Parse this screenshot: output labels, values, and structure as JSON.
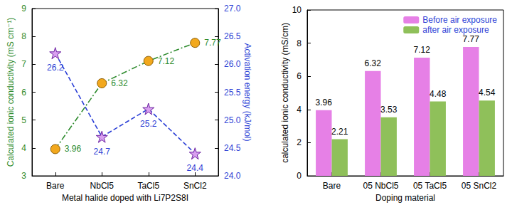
{
  "chart_data": [
    {
      "type": "line",
      "x_label": "Metal halide doped with Li7P2S8I",
      "y_label": "Calculated ionic conductivity (mS cm⁻¹)",
      "y2_label": "Activation energy (kJ/mol)",
      "categories": [
        "Bare",
        "NbCl5",
        "TaCl5",
        "SnCl2"
      ],
      "series": [
        {
          "name": "Calculated ionic conductivity",
          "color": "#2e8b2e",
          "marker": "circle",
          "line_style": "dashdot",
          "values": [
            3.96,
            6.32,
            7.12,
            7.77
          ]
        },
        {
          "name": "Activation energy",
          "color": "#2b3fd6",
          "marker": "star",
          "line_style": "dashed",
          "axis": "y2",
          "values": [
            26.2,
            24.7,
            25.2,
            24.4
          ]
        }
      ],
      "ylim": [
        3,
        9
      ],
      "yticks": [
        3,
        4,
        5,
        6,
        7,
        8,
        9
      ],
      "y2lim": [
        24,
        27
      ],
      "y2ticks": [
        {
          "value": 24,
          "label": "24.0"
        },
        24.5,
        {
          "value": 25,
          "label": "25.0"
        },
        25.5,
        {
          "value": 26,
          "label": "26.0"
        },
        26.5,
        {
          "value": 27,
          "label": "27.0"
        }
      ],
      "data_labels": true,
      "grid": false
    },
    {
      "type": "bar",
      "x_label": "Doping material",
      "y_label": "calculated ionic conductivity (mS/cm)",
      "categories": [
        "Bare",
        "05 NbCl5",
        "05 TaCl5",
        "05 SnCl2"
      ],
      "series": [
        {
          "name": "Before air exposure",
          "color": "#e680e6",
          "values": [
            3.96,
            6.32,
            7.12,
            7.77
          ]
        },
        {
          "name": "after air exposure",
          "color": "#8fc05a",
          "values": [
            2.21,
            3.53,
            4.48,
            4.54
          ]
        }
      ],
      "ylim": [
        0,
        10
      ],
      "yticks": [
        0,
        2,
        4,
        6,
        8,
        10
      ],
      "data_labels": true,
      "grid": false,
      "legend": "top-right"
    }
  ]
}
